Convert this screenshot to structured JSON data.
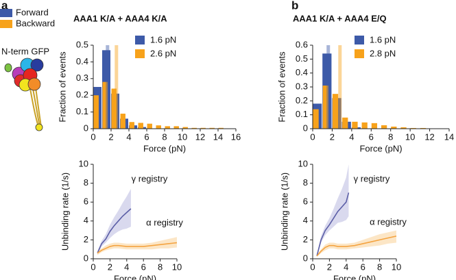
{
  "panel_labels": [
    "a",
    "b"
  ],
  "legend": [
    {
      "name": "Forward",
      "color": "#3d5aa8"
    },
    {
      "name": "Backward",
      "color": "#f7a21b"
    }
  ],
  "illustration_label": "N-term GFP",
  "chart_data": [
    {
      "type": "histogram",
      "title": "AAA1 K/A + AAA4 K/A",
      "xlabel": "Force (pN)",
      "ylabel": "Fraction of events",
      "bins": [
        0,
        1,
        2,
        3,
        4,
        5,
        6,
        7,
        8,
        9,
        10,
        11,
        12,
        13,
        14,
        15,
        16
      ],
      "series": [
        {
          "name": "1.6 pN",
          "color": "#3d5aa8",
          "mean": 1.6,
          "values": [
            0.25,
            0.47,
            0.21,
            0.06,
            0.02,
            0.01,
            0,
            0,
            0,
            0,
            0,
            0,
            0,
            0,
            0,
            0
          ]
        },
        {
          "name": "2.6 pN",
          "color": "#f7a21b",
          "mean": 2.6,
          "values": [
            0.2,
            0.28,
            0.24,
            0.09,
            0.04,
            0.035,
            0.03,
            0.02,
            0.015,
            0.015,
            0.01,
            0.005,
            0.005,
            0.005,
            0.005,
            0
          ]
        }
      ],
      "xlim": [
        0,
        16
      ],
      "xticks": [
        0,
        2,
        4,
        6,
        8,
        10,
        12,
        14,
        16
      ],
      "ylim": [
        0,
        0.5
      ],
      "yticks": [
        0,
        0.1,
        0.2,
        0.3,
        0.4,
        0.5
      ]
    },
    {
      "type": "histogram",
      "title": "AAA1 K/A + AAA4 E/Q",
      "xlabel": "Force (pN)",
      "ylabel": "Fraction of events",
      "bins": [
        0,
        1,
        2,
        3,
        4,
        5,
        6,
        7,
        8,
        9,
        10,
        11,
        12,
        13,
        14
      ],
      "series": [
        {
          "name": "1.6 pN",
          "color": "#3d5aa8",
          "mean": 1.6,
          "values": [
            0.18,
            0.54,
            0.22,
            0.05,
            0.01,
            0,
            0,
            0,
            0,
            0,
            0,
            0,
            0,
            0
          ]
        },
        {
          "name": "2.8 pN",
          "color": "#f7a21b",
          "mean": 2.8,
          "values": [
            0.14,
            0.31,
            0.25,
            0.08,
            0.05,
            0.045,
            0.04,
            0.025,
            0.015,
            0.01,
            0.005,
            0.005,
            0,
            0
          ]
        }
      ],
      "xlim": [
        0,
        14
      ],
      "xticks": [
        0,
        2,
        4,
        6,
        8,
        10,
        12,
        14
      ],
      "ylim": [
        0,
        0.6
      ],
      "yticks": [
        0,
        0.1,
        0.2,
        0.3,
        0.4,
        0.5,
        0.6
      ]
    },
    {
      "type": "line",
      "xlabel": "Force (pN)",
      "ylabel": "Unbinding rate (1/s)",
      "annotations": [
        "γ registry",
        "α registry"
      ],
      "series": [
        {
          "color": "#5b5ea6",
          "band_color": "#cfcfea",
          "x": [
            0.5,
            1,
            1.5,
            2,
            2.5,
            3,
            3.5,
            4,
            4.5
          ],
          "values": [
            0.6,
            1.6,
            2.1,
            2.9,
            3.5,
            4.0,
            4.5,
            4.9,
            5.3
          ],
          "lower": [
            0.4,
            1.3,
            1.7,
            2.2,
            2.6,
            2.9,
            3.1,
            3.2,
            3.4
          ],
          "upper": [
            0.8,
            1.9,
            2.6,
            3.6,
            4.4,
            5.1,
            5.9,
            6.6,
            7.4
          ]
        },
        {
          "color": "#f4a340",
          "band_color": "#fbe0b8",
          "x": [
            0.5,
            1,
            1.5,
            2,
            2.5,
            3,
            4,
            5,
            6,
            7,
            8,
            9,
            10
          ],
          "values": [
            0.6,
            0.9,
            1.1,
            1.3,
            1.4,
            1.4,
            1.3,
            1.3,
            1.3,
            1.4,
            1.5,
            1.6,
            1.7
          ],
          "lower": [
            0.4,
            0.7,
            0.9,
            1.0,
            1.1,
            1.1,
            1.0,
            1.0,
            1.0,
            1.0,
            1.1,
            1.1,
            1.2
          ],
          "upper": [
            0.8,
            1.1,
            1.4,
            1.6,
            1.7,
            1.7,
            1.6,
            1.6,
            1.6,
            1.7,
            1.9,
            2.1,
            2.3
          ]
        }
      ],
      "xlim": [
        0,
        10
      ],
      "xticks": [
        0,
        2,
        4,
        6,
        8,
        10
      ],
      "ylim": [
        0,
        10
      ],
      "yticks": [
        0,
        2,
        4,
        6,
        8,
        10
      ]
    },
    {
      "type": "line",
      "xlabel": "Force (pN)",
      "ylabel": "Unbinding rate (1/s)",
      "annotations": [
        "γ registry",
        "α registry"
      ],
      "series": [
        {
          "color": "#5b5ea6",
          "band_color": "#cfcfea",
          "x": [
            0.5,
            1,
            1.5,
            2,
            2.5,
            3,
            3.5,
            4,
            4.3
          ],
          "values": [
            0.3,
            2.0,
            3.0,
            3.6,
            4.3,
            5.0,
            5.5,
            6.0,
            7.0
          ],
          "lower": [
            0.2,
            1.7,
            2.5,
            3.0,
            3.4,
            3.8,
            3.9,
            4.1,
            4.5
          ],
          "upper": [
            0.5,
            2.4,
            3.5,
            4.3,
            5.3,
            6.4,
            7.4,
            8.6,
            10
          ]
        },
        {
          "color": "#f4a340",
          "band_color": "#fbe0b8",
          "x": [
            0.5,
            1,
            1.5,
            2,
            2.5,
            3,
            4,
            5,
            6,
            7,
            8,
            9,
            10
          ],
          "values": [
            0.3,
            0.8,
            1.2,
            1.4,
            1.4,
            1.3,
            1.3,
            1.4,
            1.6,
            1.8,
            2.0,
            2.2,
            2.4
          ],
          "lower": [
            0.2,
            0.6,
            0.9,
            1.1,
            1.1,
            1.0,
            1.0,
            1.1,
            1.2,
            1.3,
            1.4,
            1.6,
            1.7
          ],
          "upper": [
            0.5,
            1.0,
            1.5,
            1.7,
            1.7,
            1.6,
            1.6,
            1.7,
            2.0,
            2.3,
            2.6,
            2.8,
            3.0
          ]
        }
      ],
      "xlim": [
        0,
        10
      ],
      "xticks": [
        0,
        2,
        4,
        6,
        8,
        10
      ],
      "ylim": [
        0,
        10
      ],
      "yticks": [
        0,
        2,
        4,
        6,
        8,
        10
      ]
    }
  ]
}
